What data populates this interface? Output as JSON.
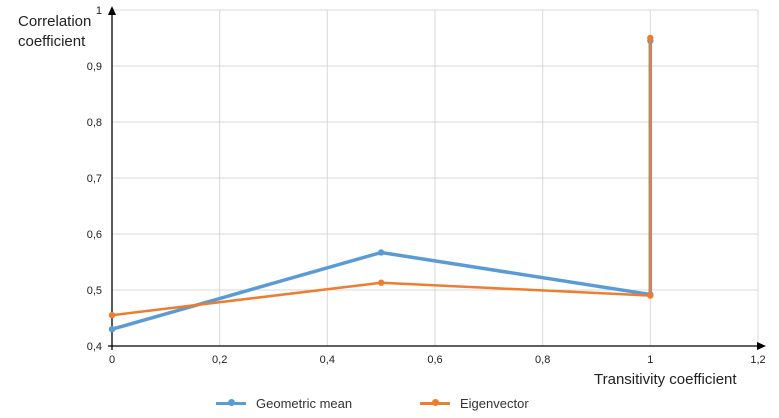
{
  "chart_data": {
    "type": "line",
    "title": "",
    "xlabel": "Transitivity coefficient",
    "ylabel_line1": "Correlation",
    "ylabel_line2": "coefficient",
    "xlim": [
      0,
      1.2
    ],
    "ylim": [
      0.4,
      1.0
    ],
    "x_ticks": [
      "0",
      "0,2",
      "0,4",
      "0,6",
      "0,8",
      "1",
      "1,2"
    ],
    "y_ticks": [
      "0,4",
      "0,5",
      "0,6",
      "0,7",
      "0,8",
      "0,9",
      "1"
    ],
    "grid": true,
    "legend_position": "bottom",
    "series": [
      {
        "name": "Geometric mean",
        "color": "#5B9BD5",
        "points": [
          [
            0,
            0.43
          ],
          [
            0.5,
            0.567
          ],
          [
            1.0,
            0.492
          ],
          [
            1.0,
            0.945
          ]
        ]
      },
      {
        "name": "Eigenvector",
        "color": "#ED7D31",
        "points": [
          [
            0,
            0.455
          ],
          [
            0.5,
            0.513
          ],
          [
            1.0,
            0.49
          ],
          [
            1.0,
            0.95
          ]
        ]
      }
    ]
  }
}
